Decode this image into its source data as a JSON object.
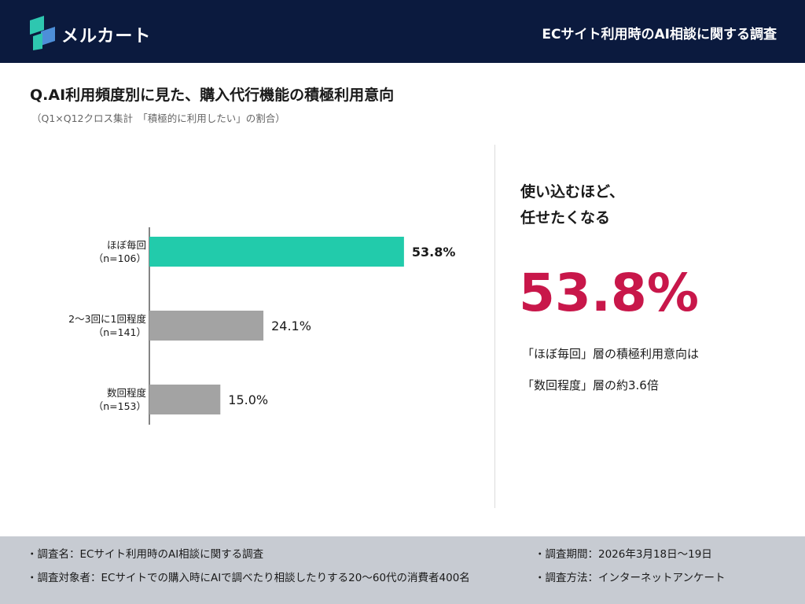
{
  "header": {
    "brand": "メルカート",
    "survey_title": "ECサイト利用時のAI相談に関する調査",
    "colors": {
      "background": "#0b1a3e",
      "logo_teal": "#2ec7b0",
      "logo_blue": "#4d8fd9"
    }
  },
  "question": {
    "title": "Q.AI利用頻度別に見た、購入代行機能の積極利用意向",
    "subtitle": "（Q1×Q12クロス集計　「積極的に利用したい」の割合）"
  },
  "chart_data": {
    "type": "bar",
    "orientation": "horizontal",
    "categories": [
      {
        "label": "ほぼ毎回",
        "n": "（n=106）"
      },
      {
        "label": "2〜3回に1回程度",
        "n": "（n=141）"
      },
      {
        "label": "数回程度",
        "n": "（n=153）"
      }
    ],
    "values": [
      53.8,
      24.1,
      15.0
    ],
    "value_labels": [
      "53.8%",
      "24.1%",
      "15.0%"
    ],
    "highlight_index": 0,
    "colors": {
      "highlight": "#22cbab",
      "default": "#a3a3a3"
    },
    "xlim": [
      0,
      100
    ],
    "grid": false
  },
  "highlight": {
    "headline_line1": "使い込むほど、",
    "headline_line2": "任せたくなる",
    "value": "53.8%",
    "value_color": "#c8174a",
    "note_line1": "「ほぼ毎回」層の積極利用意向は",
    "note_line2": "「数回程度」層の約3.6倍"
  },
  "footer": {
    "survey_name": "・調査名：ECサイト利用時のAI相談に関する調査",
    "survey_target": "・調査対象者：ECサイトでの購入時にAIで調べたり相談したりする20〜60代の消費者400名",
    "survey_period": "・調査期間：2026年3月18日〜19日",
    "survey_method": "・調査方法：インターネットアンケート"
  }
}
